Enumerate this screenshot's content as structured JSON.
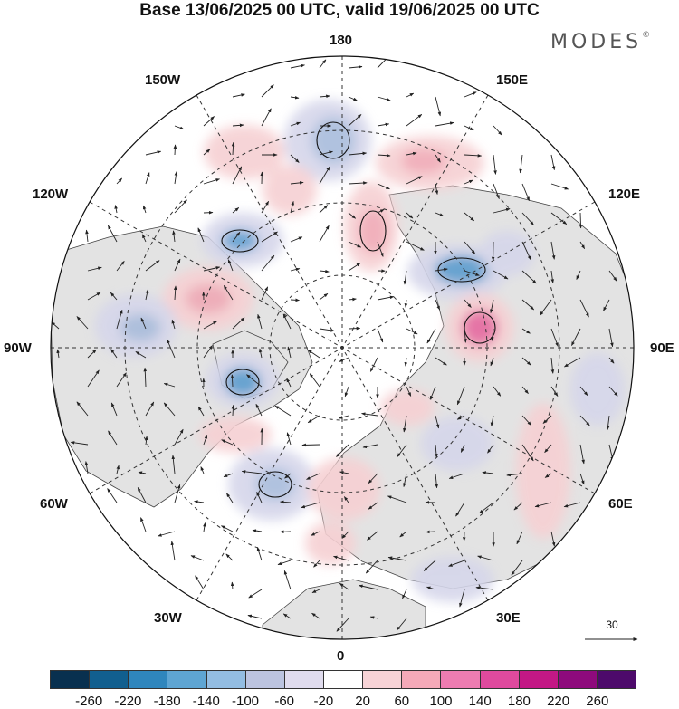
{
  "title": "Base 13/06/2025 00 UTC, valid 19/06/2025 00 UTC",
  "logo": "MODES",
  "logo_mark": "©",
  "longitude_labels": {
    "n180": "180",
    "w150": "150W",
    "e150": "150E",
    "w120": "120W",
    "e120": "120E",
    "w90": "90W",
    "e90": "90E",
    "w60": "60W",
    "e60": "60E",
    "w30": "30W",
    "e30": "30E",
    "s0": "0"
  },
  "reference_vector": "30",
  "colorbar": {
    "colors": [
      "#08304f",
      "#115f8f",
      "#2f86bd",
      "#5ea5d3",
      "#93bde2",
      "#bcc4e0",
      "#e0dcee",
      "#ffffff",
      "#f7d3d6",
      "#f4a9b8",
      "#ed7cb1",
      "#e04a9e",
      "#c31885",
      "#8e0a7c",
      "#4d0a6b"
    ],
    "ticks": [
      "-260",
      "-220",
      "-180",
      "-140",
      "-100",
      "-60",
      "-20",
      "20",
      "60",
      "100",
      "140",
      "180",
      "220",
      "260"
    ]
  },
  "anomaly_colors": {
    "pos_weak": "#f6d0d3",
    "pos_mid": "#f0a9b5",
    "pos_strong": "#e66aa0",
    "neg_weak": "#d5d6ea",
    "neg_mid": "#a8bcdc",
    "neg_strong": "#5b9dcf",
    "land": "#e4e4e4"
  }
}
